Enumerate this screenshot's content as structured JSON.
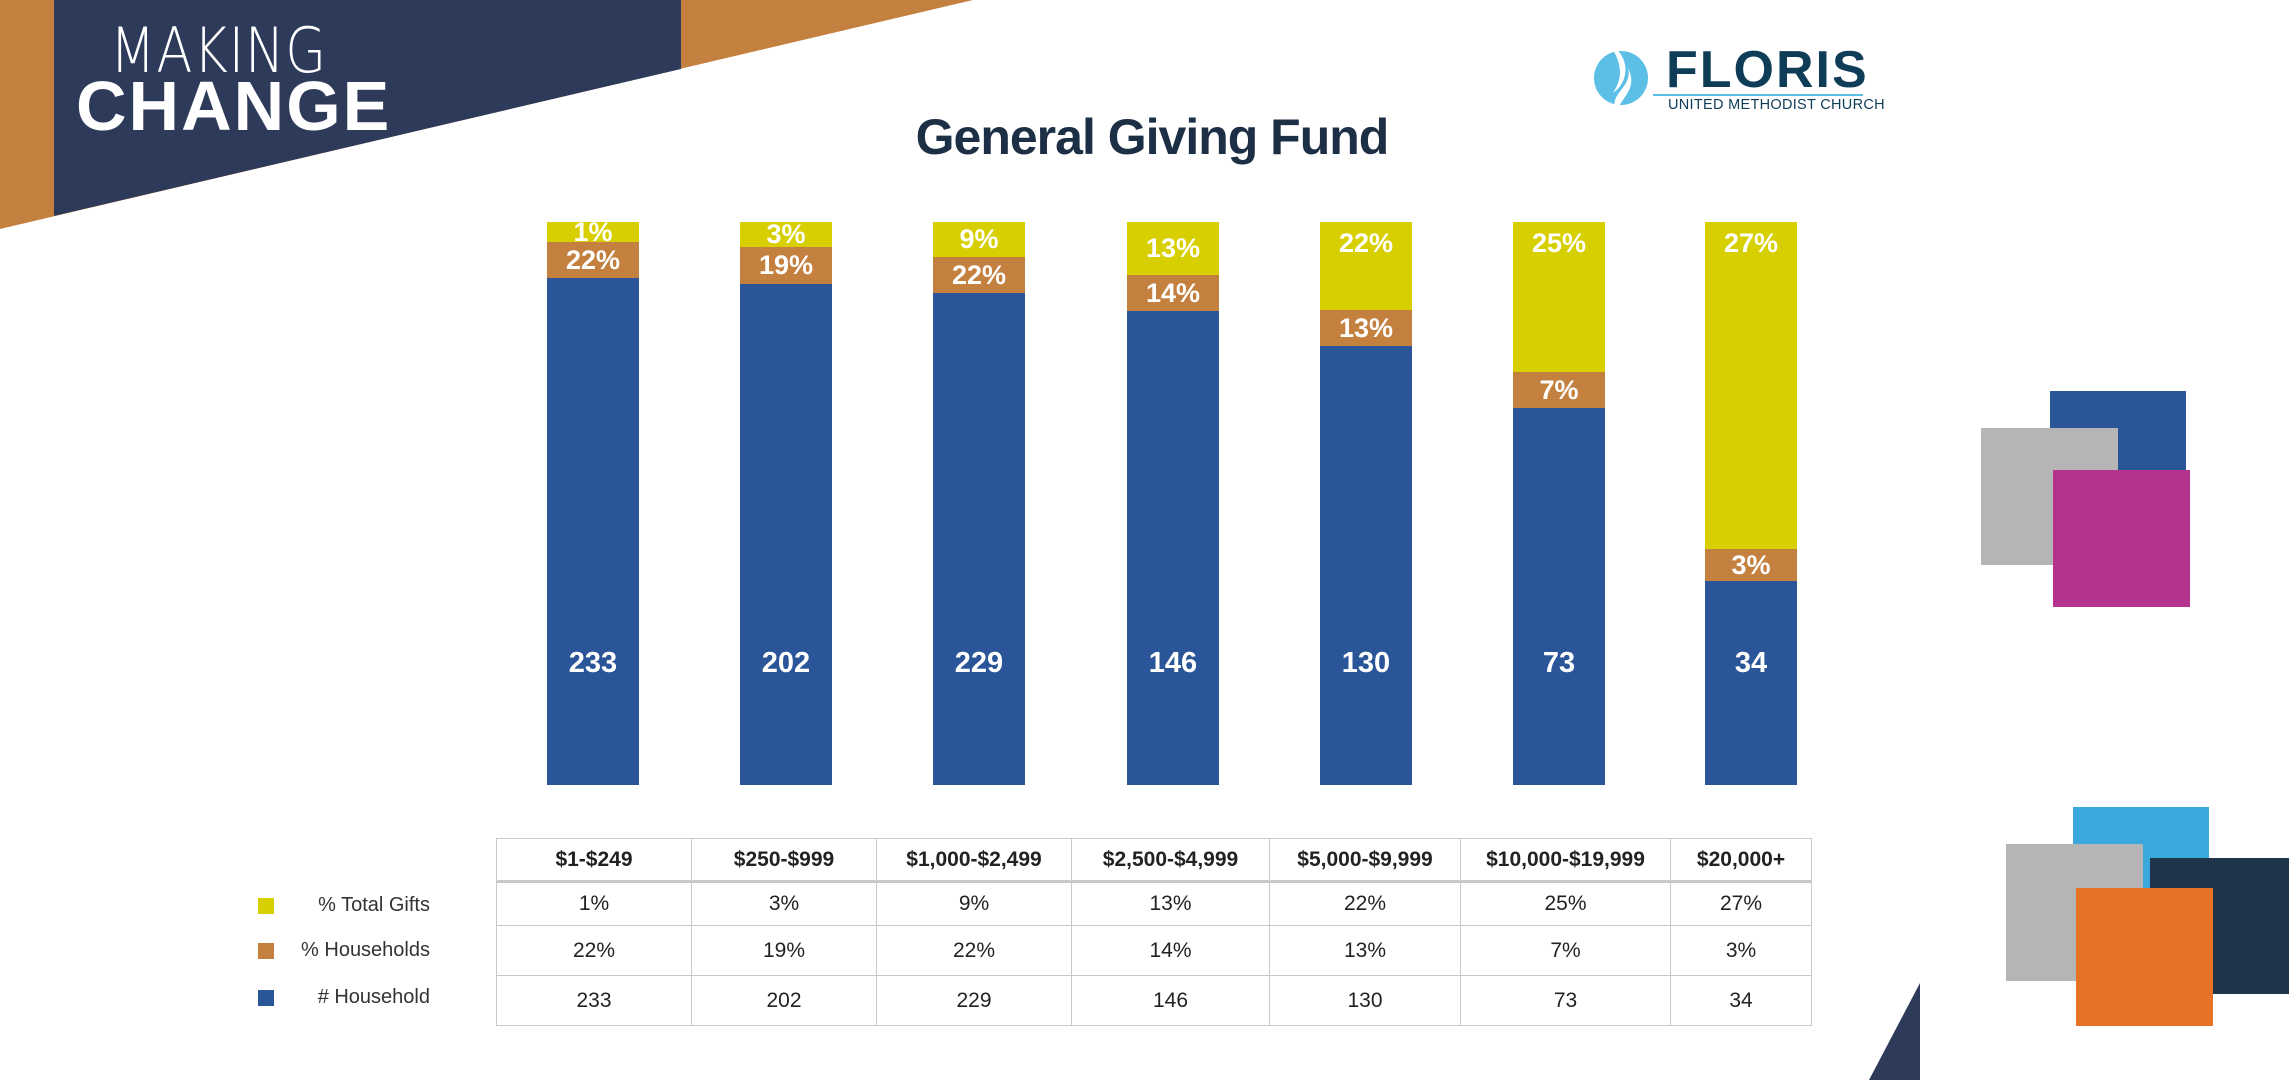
{
  "header": {
    "logo_line1": "MAKING",
    "logo_line2": "CHANGE",
    "church_name": "FLORIS",
    "church_subtitle": "UNITED METHODIST CHURCH"
  },
  "colors": {
    "total_gifts": "#d7cf00",
    "households_pct": "#c4803f",
    "households_count": "#2a5699",
    "banner_navy": "#2e3a5a",
    "banner_orange": "#c4803f"
  },
  "chart_data": {
    "type": "bar",
    "stacked": true,
    "title": "General Giving Fund",
    "categories": [
      "$1-$249",
      "$250-$999",
      "$1,000-$2,499",
      "$2,500-$4,999",
      "$5,000-$9,999",
      "$10,000-$19,999",
      "$20,000+"
    ],
    "series": [
      {
        "name": "% Total Gifts",
        "values": [
          "1%",
          "3%",
          "9%",
          "13%",
          "22%",
          "25%",
          "27%"
        ]
      },
      {
        "name": "% Households",
        "values": [
          "22%",
          "19%",
          "22%",
          "14%",
          "13%",
          "7%",
          "3%"
        ]
      },
      {
        "name": "# Household",
        "values": [
          "233",
          "202",
          "229",
          "146",
          "130",
          "73",
          "34"
        ]
      }
    ],
    "legend_position": "left-of-table",
    "grid": false
  }
}
